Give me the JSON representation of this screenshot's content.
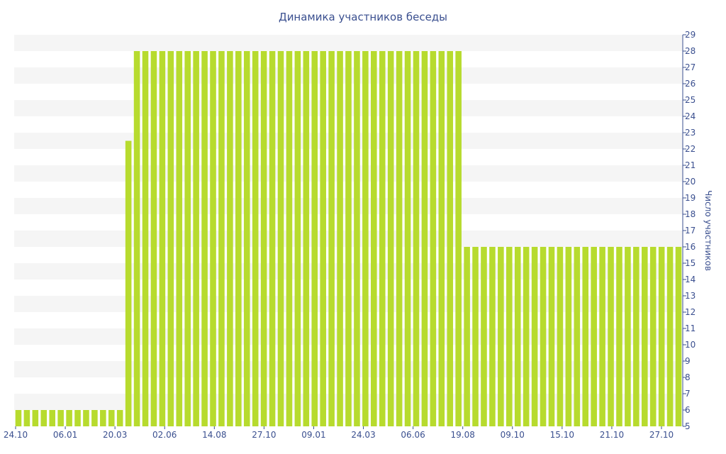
{
  "chart_data": {
    "type": "bar",
    "title": "Динамика участников беседы",
    "xlabel": "",
    "ylabel": "Число участников",
    "ylim": [
      5,
      29
    ],
    "yticks": [
      5,
      6,
      7,
      8,
      9,
      10,
      11,
      12,
      13,
      14,
      15,
      16,
      17,
      18,
      19,
      20,
      21,
      22,
      23,
      24,
      25,
      26,
      27,
      28,
      29
    ],
    "xtick_labels": [
      "24.10",
      "06.01",
      "20.03",
      "02.06",
      "14.08",
      "27.10",
      "09.01",
      "24.03",
      "06.06",
      "19.08",
      "09.10",
      "15.10",
      "21.10",
      "27.10"
    ],
    "grid": "horizontal-bands",
    "bar_color": "#b7db2e",
    "band_color": "#f5f5f5",
    "text_color": "#3a4f8f",
    "values": [
      6,
      6,
      6,
      6,
      6,
      6,
      6,
      6,
      6,
      6,
      6,
      6,
      6,
      22.5,
      28,
      28,
      28,
      28,
      28,
      28,
      28,
      28,
      28,
      28,
      28,
      28,
      28,
      28,
      28,
      28,
      28,
      28,
      28,
      28,
      28,
      28,
      28,
      28,
      28,
      28,
      28,
      28,
      28,
      28,
      28,
      28,
      28,
      28,
      28,
      28,
      28,
      28,
      28,
      16,
      16,
      16,
      16,
      16,
      16,
      16,
      16,
      16,
      16,
      16,
      16,
      16,
      16,
      16,
      16,
      16,
      16,
      16,
      16,
      16,
      16,
      16,
      16,
      16,
      16
    ]
  }
}
